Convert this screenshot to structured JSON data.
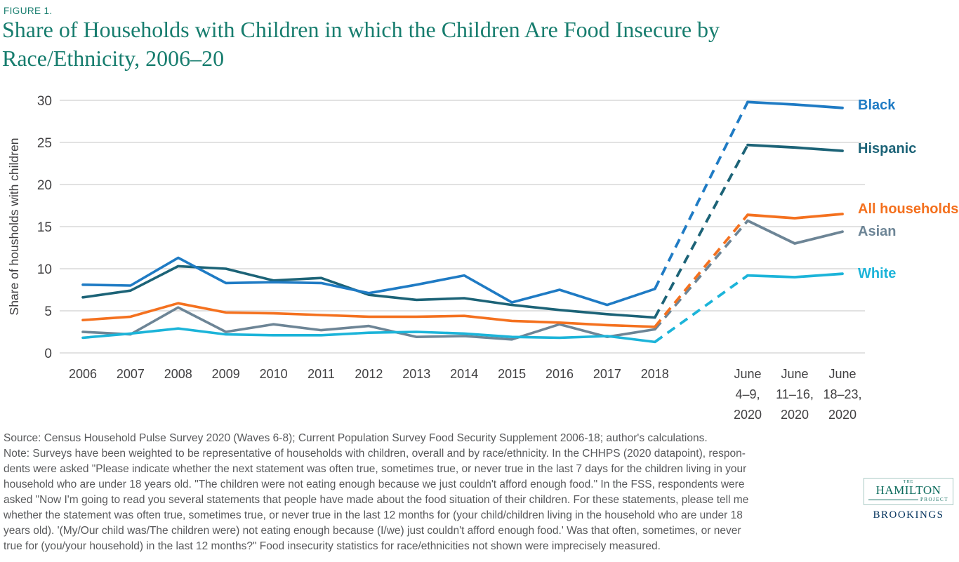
{
  "figure_label": "FIGURE 1.",
  "title_line1": "Share of Households with Children in which the Children Are Food Insecure by",
  "title_line2": "Race/Ethnicity, 2006–20",
  "colors": {
    "title_teal": "#177d6e",
    "hamilton_teal": "#0c6b5c",
    "brookings_navy": "#00305b",
    "note_gray": "#58595b"
  },
  "chart_data": {
    "type": "line",
    "title": "Share of Households with Children in which the Children Are Food Insecure by Race/Ethnicity, 2006–20",
    "xlabel": "",
    "ylabel": "Share of housholds with children",
    "ylim": [
      0,
      30
    ],
    "yticks": [
      0,
      5,
      10,
      15,
      20,
      25,
      30
    ],
    "grid": true,
    "grid_color": "#d8d8d8",
    "axis_text_color": "#414042",
    "legend_position": "right",
    "dashed_segment_note": "lines are dashed between 2018 and June 4–9, 2020",
    "dashed_from_index": 12,
    "dashed_to_index": 13,
    "x_categories": [
      "2006",
      "2007",
      "2008",
      "2009",
      "2010",
      "2011",
      "2012",
      "2013",
      "2014",
      "2015",
      "2016",
      "2017",
      "2018",
      "June 4–9, 2020",
      "June 11–16, 2020",
      "June 18–23, 2020"
    ],
    "x_tick_lines": [
      [
        "2006"
      ],
      [
        "2007"
      ],
      [
        "2008"
      ],
      [
        "2009"
      ],
      [
        "2010"
      ],
      [
        "2011"
      ],
      [
        "2012"
      ],
      [
        "2013"
      ],
      [
        "2014"
      ],
      [
        "2015"
      ],
      [
        "2016"
      ],
      [
        "2017"
      ],
      [
        "2018"
      ],
      [
        "June",
        "4–9,",
        "2020"
      ],
      [
        "June",
        "11–16,",
        "2020"
      ],
      [
        "June",
        "18–23,",
        "2020"
      ]
    ],
    "series": [
      {
        "id": "asian",
        "name": "Asian",
        "color": "#6d8596",
        "label_dy": -1,
        "values": [
          2.5,
          2.2,
          5.4,
          2.5,
          3.4,
          2.7,
          3.2,
          1.9,
          2.0,
          1.6,
          3.4,
          1.9,
          2.8,
          15.7,
          13.0,
          14.4
        ]
      },
      {
        "id": "white",
        "name": "White",
        "color": "#1cb4d9",
        "label_dy": -1,
        "values": [
          1.8,
          2.3,
          2.9,
          2.2,
          2.1,
          2.1,
          2.4,
          2.5,
          2.3,
          1.9,
          1.8,
          2.0,
          1.3,
          9.2,
          9.0,
          9.4
        ]
      },
      {
        "id": "hispanic",
        "name": "Hispanic",
        "color": "#1c6377",
        "label_dy": -4,
        "values": [
          6.6,
          7.4,
          10.3,
          10.0,
          8.6,
          8.9,
          6.9,
          6.3,
          6.5,
          5.7,
          5.1,
          4.6,
          4.2,
          24.7,
          24.4,
          24.0
        ]
      },
      {
        "id": "black",
        "name": "Black",
        "color": "#1f7bc4",
        "label_dy": -5,
        "values": [
          8.1,
          8.0,
          11.3,
          8.3,
          8.4,
          8.3,
          7.1,
          8.1,
          9.2,
          6.0,
          7.5,
          5.7,
          7.6,
          29.8,
          29.5,
          29.1
        ]
      },
      {
        "id": "all-households",
        "name": "All households",
        "color": "#f4711f",
        "label_dy": -8,
        "values": [
          3.9,
          4.3,
          5.9,
          4.8,
          4.7,
          4.5,
          4.3,
          4.3,
          4.4,
          3.8,
          3.6,
          3.3,
          3.1,
          16.4,
          16.0,
          16.5
        ]
      }
    ]
  },
  "notes": {
    "lines": [
      "Source: Census Household Pulse Survey 2020 (Waves 6-8); Current Population Survey Food Security Supplement 2006-18; author's calculations.",
      "Note: Surveys have been weighted to be representative of households with children, overall and by race/ethnicity. In the CHHPS (2020 datapoint), respon-",
      "dents were asked \"Please indicate whether the next statement was often true, sometimes true, or never true in the last 7 days for the children living in your",
      "household who are under 18 years old. \"The children were not eating enough because we just couldn't afford enough food.\" In the FSS, respondents were",
      "asked \"Now I'm going to read you several statements that people have made about the food situation of their children. For these statements, please tell me",
      "whether the statement was often true, sometimes true, or never true in the last 12 months for (your child/children living in the household who are under 18",
      "years old). '(My/Our child was/The children were) not eating enough because (I/we) just couldn't afford enough food.' Was that often, sometimes, or never",
      "true for (you/your household) in the last 12 months?\" Food insecurity statistics for race/ethnicities not shown were imprecisely measured."
    ]
  },
  "logo": {
    "the": "THE",
    "hamilton": "HAMILTON",
    "project": "PROJECT",
    "brookings": "BROOKINGS"
  }
}
